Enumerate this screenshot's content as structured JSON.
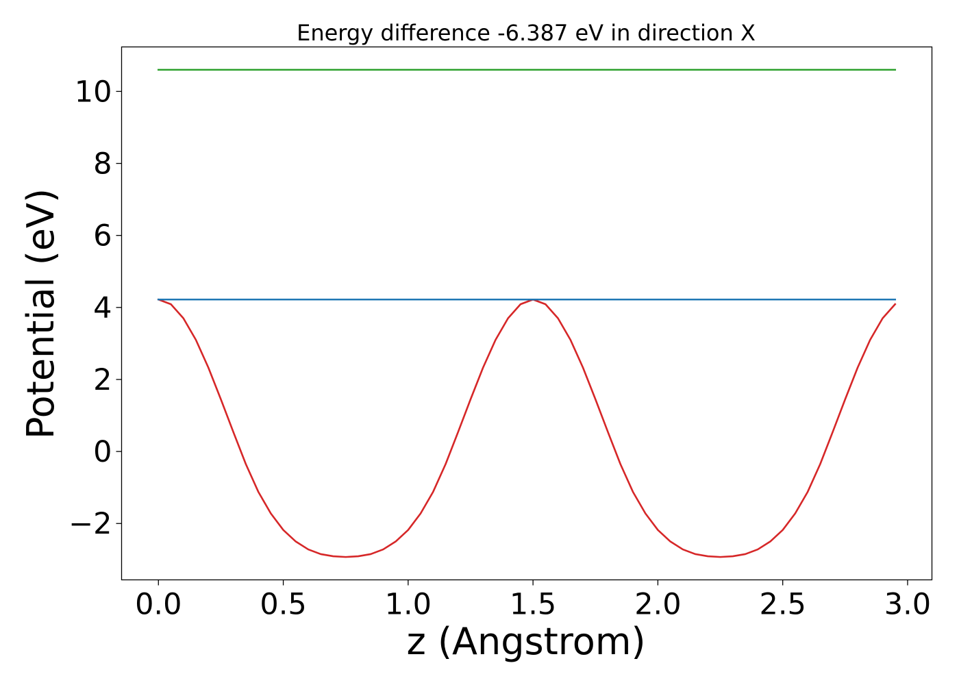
{
  "chart_data": {
    "type": "line",
    "title": "Energy difference -6.387 eV in direction X",
    "xlabel": "z (Angstrom)",
    "ylabel": "Potential (eV)",
    "xlim": [
      -0.1475,
      3.0975
    ],
    "ylim": [
      -3.565,
      11.235
    ],
    "xticks": [
      0.0,
      0.5,
      1.0,
      1.5,
      2.0,
      2.5,
      3.0
    ],
    "xtick_labels": [
      "0.0",
      "0.5",
      "1.0",
      "1.5",
      "2.0",
      "2.5",
      "3.0"
    ],
    "yticks": [
      -2,
      0,
      2,
      4,
      6,
      8,
      10
    ],
    "ytick_labels": [
      "−2",
      "0",
      "2",
      "4",
      "6",
      "8",
      "10"
    ],
    "grid": false,
    "series": [
      {
        "color": "#d62728",
        "x": [
          0.0,
          0.05,
          0.1,
          0.15,
          0.2,
          0.25,
          0.3,
          0.35,
          0.4,
          0.45,
          0.5,
          0.55,
          0.6,
          0.65,
          0.7,
          0.75,
          0.8,
          0.85,
          0.9,
          0.95,
          1.0,
          1.05,
          1.1,
          1.15,
          1.2,
          1.25,
          1.3,
          1.35,
          1.4,
          1.45,
          1.5,
          1.55,
          1.6,
          1.65,
          1.7,
          1.75,
          1.8,
          1.85,
          1.9,
          1.95,
          2.0,
          2.05,
          2.1,
          2.15,
          2.2,
          2.25,
          2.3,
          2.35,
          2.4,
          2.45,
          2.5,
          2.55,
          2.6,
          2.65,
          2.7,
          2.75,
          2.8,
          2.85,
          2.9,
          2.95
        ],
        "y": [
          4.22,
          4.09,
          3.7,
          3.1,
          2.33,
          1.45,
          0.54,
          -0.35,
          -1.12,
          -1.72,
          -2.18,
          -2.5,
          -2.72,
          -2.85,
          -2.91,
          -2.93,
          -2.91,
          -2.85,
          -2.72,
          -2.5,
          -2.18,
          -1.72,
          -1.12,
          -0.35,
          0.54,
          1.45,
          2.33,
          3.1,
          3.7,
          4.09,
          4.22,
          4.09,
          3.7,
          3.1,
          2.33,
          1.45,
          0.54,
          -0.35,
          -1.12,
          -1.72,
          -2.18,
          -2.5,
          -2.72,
          -2.85,
          -2.91,
          -2.93,
          -2.91,
          -2.85,
          -2.72,
          -2.5,
          -2.18,
          -1.72,
          -1.12,
          -0.35,
          0.54,
          1.45,
          2.33,
          3.1,
          3.7,
          4.09
        ]
      },
      {
        "color": "#1f77b4",
        "x": [
          0.0,
          2.95
        ],
        "y": [
          4.22,
          4.22
        ]
      },
      {
        "color": "#2ca02c",
        "x": [
          0.0,
          2.95
        ],
        "y": [
          10.6,
          10.6
        ]
      }
    ]
  }
}
